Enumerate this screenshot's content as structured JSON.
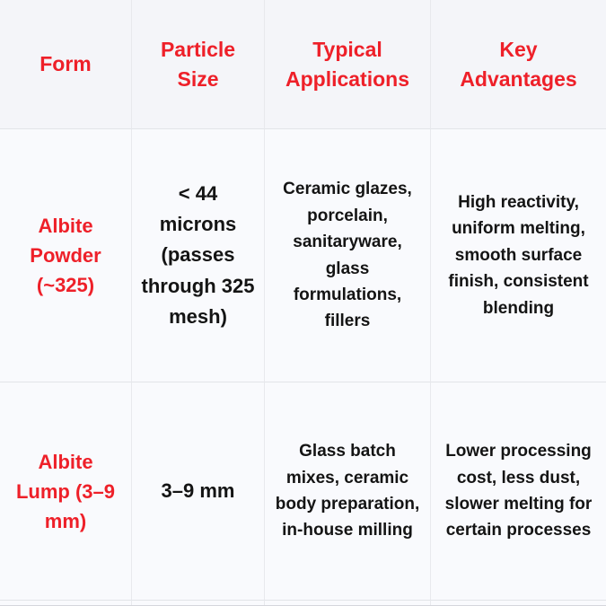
{
  "chart_data": {
    "type": "table",
    "title": "",
    "columns": [
      "Form",
      "Particle Size",
      "Typical Applications",
      "Key Advantages"
    ],
    "rows": [
      [
        "Albite Powder (~325)",
        "< 44 microns (passes through 325 mesh)",
        "Ceramic glazes, porcelain, sanitaryware, glass formulations, fillers",
        "High reactivity, uniform melting, smooth surface finish, consistent blending"
      ],
      [
        "Albite Lump (3–9 mm)",
        "3–9 mm",
        "Glass batch mixes, ceramic body preparation, in-house milling",
        "Lower processing cost, less dust, slower melting for certain processes"
      ]
    ],
    "layout": {
      "header_position": "top",
      "grid": "on",
      "text_alignment": "center"
    }
  },
  "colors": {
    "header_text": "#ee2029",
    "row_label_text": "#ee2029",
    "body_text": "#141414",
    "header_background": "#f4f5f9",
    "body_background": "#f9fafd",
    "grid_line_horizontal": "#e2e4e8",
    "grid_line_vertical": "#e8e9ed",
    "bottom_edge": "#d5d6dc"
  }
}
